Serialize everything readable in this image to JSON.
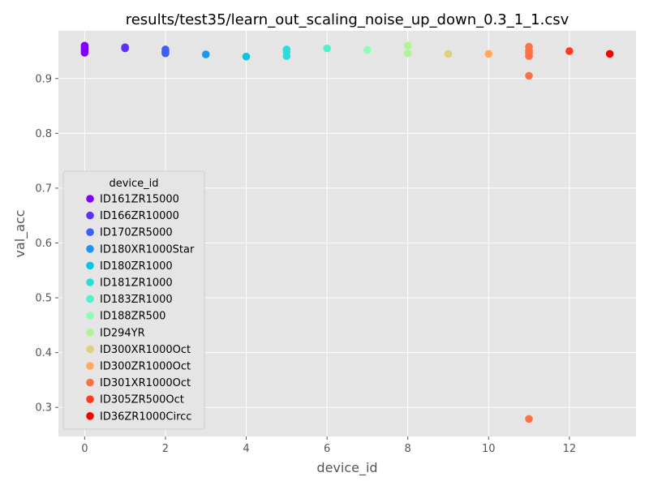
{
  "chart_data": {
    "type": "scatter",
    "title": "results/test35/learn_out_scaling_noise_up_down_0.3_1_1.csv",
    "xlabel": "device_id",
    "ylabel": "val_acc",
    "xlim": [
      -0.65,
      13.65
    ],
    "ylim": [
      0.247,
      0.987
    ],
    "xticks": [
      0,
      2,
      4,
      6,
      8,
      10,
      12
    ],
    "yticks": [
      0.3,
      0.4,
      0.5,
      0.6,
      0.7,
      0.8,
      0.9
    ],
    "grid": true,
    "legend": {
      "title": "device_id",
      "placement": "lower-left"
    },
    "series": [
      {
        "name": "ID161ZR15000",
        "color": "#8000ff",
        "points": [
          [
            0,
            0.96
          ],
          [
            0,
            0.955
          ],
          [
            0,
            0.951
          ],
          [
            0,
            0.947
          ]
        ]
      },
      {
        "name": "ID166ZR10000",
        "color": "#5f30fd",
        "points": [
          [
            1,
            0.957
          ],
          [
            1,
            0.955
          ]
        ]
      },
      {
        "name": "ID170ZR5000",
        "color": "#3c5ff8",
        "points": [
          [
            2,
            0.953
          ],
          [
            2,
            0.949
          ],
          [
            2,
            0.946
          ]
        ]
      },
      {
        "name": "ID180XR1000Star",
        "color": "#1996f3",
        "points": [
          [
            3,
            0.944
          ]
        ]
      },
      {
        "name": "ID180ZR1000",
        "color": "#07c5e7",
        "points": [
          [
            4,
            0.94
          ]
        ]
      },
      {
        "name": "ID181ZR1000",
        "color": "#2adddd",
        "points": [
          [
            5,
            0.953
          ],
          [
            5,
            0.948
          ],
          [
            5,
            0.941
          ]
        ]
      },
      {
        "name": "ID183ZR1000",
        "color": "#4df3ce",
        "points": [
          [
            6,
            0.955
          ]
        ]
      },
      {
        "name": "ID188ZR500",
        "color": "#8cfdb5",
        "points": [
          [
            7,
            0.952
          ]
        ]
      },
      {
        "name": "ID294YR",
        "color": "#b2f396",
        "points": [
          [
            8,
            0.96
          ],
          [
            8,
            0.946
          ]
        ]
      },
      {
        "name": "ID300XR1000Oct",
        "color": "#dfd17c",
        "points": [
          [
            9,
            0.945
          ]
        ]
      },
      {
        "name": "ID300ZR1000Oct",
        "color": "#ffa95e",
        "points": [
          [
            10,
            0.945
          ]
        ]
      },
      {
        "name": "ID301XR1000Oct",
        "color": "#ff7044",
        "points": [
          [
            11,
            0.958
          ],
          [
            11,
            0.951
          ],
          [
            11,
            0.946
          ],
          [
            11,
            0.941
          ],
          [
            11,
            0.905
          ],
          [
            11,
            0.279
          ]
        ]
      },
      {
        "name": "ID305ZR500Oct",
        "color": "#ff3a20",
        "points": [
          [
            12,
            0.95
          ]
        ]
      },
      {
        "name": "ID36ZR1000Circc",
        "color": "#ff0000",
        "points": [
          [
            13,
            0.945
          ]
        ]
      }
    ]
  }
}
